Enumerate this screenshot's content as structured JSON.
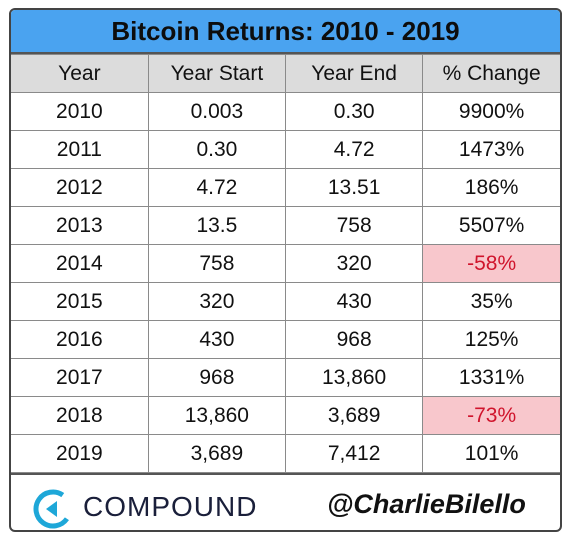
{
  "title": "Bitcoin Returns: 2010 - 2019",
  "colors": {
    "header_bg": "#4aa3f0",
    "column_header_bg": "#dcdcdc",
    "negative_bg": "#f8c7cc",
    "negative_text": "#d0142c"
  },
  "chart_data": {
    "type": "table",
    "title": "Bitcoin Returns: 2010 - 2019",
    "columns": [
      "Year",
      "Year Start",
      "Year End",
      "% Change"
    ],
    "rows": [
      [
        "2010",
        "0.003",
        "0.30",
        "9900%"
      ],
      [
        "2011",
        "0.30",
        "4.72",
        "1473%"
      ],
      [
        "2012",
        "4.72",
        "13.51",
        "186%"
      ],
      [
        "2013",
        "13.5",
        "758",
        "5507%"
      ],
      [
        "2014",
        "758",
        "320",
        "-58%"
      ],
      [
        "2015",
        "320",
        "430",
        "35%"
      ],
      [
        "2016",
        "430",
        "968",
        "125%"
      ],
      [
        "2017",
        "968",
        "13,860",
        "1331%"
      ],
      [
        "2018",
        "13,860",
        "3,689",
        "-73%"
      ],
      [
        "2019",
        "3,689",
        "7,412",
        "101%"
      ]
    ]
  },
  "footer": {
    "logo_icon": "compound-logo-icon",
    "brand": "COMPOUND",
    "handle": "@CharlieBilello"
  }
}
